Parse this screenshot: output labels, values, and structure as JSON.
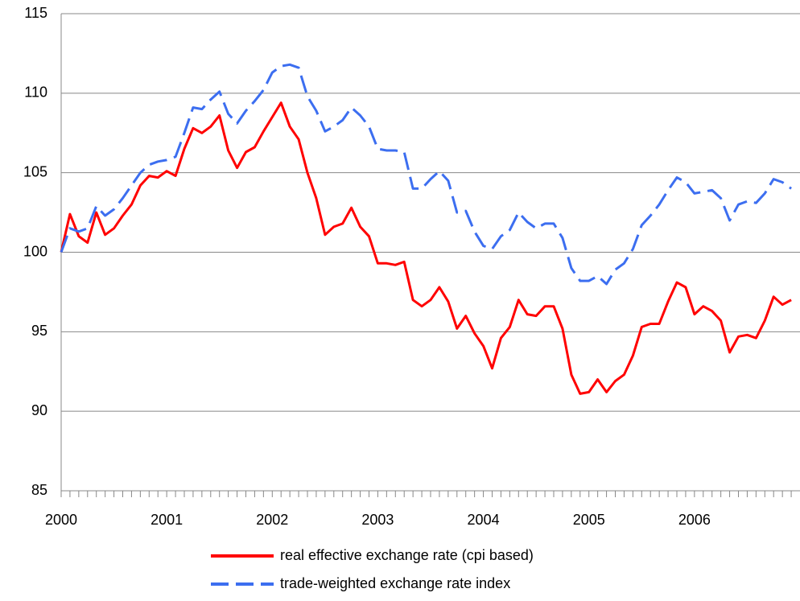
{
  "chart_data": {
    "type": "line",
    "categories": [
      "2000",
      null,
      null,
      null,
      null,
      null,
      null,
      null,
      null,
      null,
      null,
      null,
      "2001",
      null,
      null,
      null,
      null,
      null,
      null,
      null,
      null,
      null,
      null,
      null,
      "2002",
      null,
      null,
      null,
      null,
      null,
      null,
      null,
      null,
      null,
      null,
      null,
      "2003",
      null,
      null,
      null,
      null,
      null,
      null,
      null,
      null,
      null,
      null,
      null,
      "2004",
      null,
      null,
      null,
      null,
      null,
      null,
      null,
      null,
      null,
      null,
      null,
      "2005",
      null,
      null,
      null,
      null,
      null,
      null,
      null,
      null,
      null,
      null,
      null,
      "2006",
      null,
      null,
      null,
      null,
      null,
      null,
      null,
      null,
      null,
      null,
      null
    ],
    "series": [
      {
        "name": "real effective exchange rate (cpi based)",
        "color": "#ff0000",
        "dashed": false,
        "values": [
          100,
          102.4,
          101.0,
          100.6,
          102.5,
          101.1,
          101.5,
          102.3,
          103.0,
          104.2,
          104.8,
          104.7,
          105.1,
          104.8,
          106.5,
          107.8,
          107.5,
          107.9,
          108.6,
          106.4,
          105.3,
          106.3,
          106.6,
          107.6,
          108.5,
          109.4,
          107.9,
          107.1,
          105.0,
          103.4,
          101.1,
          101.6,
          101.8,
          102.8,
          101.6,
          101.0,
          99.3,
          99.3,
          99.2,
          99.4,
          97.0,
          96.6,
          97.0,
          97.8,
          96.9,
          95.2,
          96.0,
          94.9,
          94.1,
          92.7,
          94.6,
          95.3,
          97.0,
          96.1,
          96.0,
          96.6,
          96.6,
          95.2,
          92.3,
          91.1,
          91.2,
          92.0,
          91.2,
          91.9,
          92.3,
          93.5,
          95.3,
          95.5,
          95.5,
          96.9,
          98.1,
          97.8,
          96.1,
          96.6,
          96.3,
          95.7,
          93.7,
          94.7,
          94.8,
          94.6,
          95.7,
          97.2,
          96.7,
          97.0
        ]
      },
      {
        "name": "trade-weighted exchange rate index",
        "color": "#3c6ef0",
        "dashed": true,
        "values": [
          100,
          101.5,
          101.3,
          101.5,
          102.9,
          102.3,
          102.7,
          103.4,
          104.2,
          105.0,
          105.5,
          105.7,
          105.8,
          106.0,
          107.5,
          109.1,
          109.0,
          109.6,
          110.1,
          108.7,
          108.1,
          108.9,
          109.5,
          110.2,
          111.3,
          111.7,
          111.8,
          111.6,
          109.8,
          108.9,
          107.6,
          107.9,
          108.3,
          109.1,
          108.6,
          107.9,
          106.5,
          106.4,
          106.4,
          106.3,
          104.0,
          104.0,
          104.6,
          105.1,
          104.5,
          102.5,
          102.6,
          101.3,
          100.4,
          100.2,
          101.0,
          101.4,
          102.5,
          101.9,
          101.5,
          101.8,
          101.8,
          100.9,
          99.0,
          98.2,
          98.2,
          98.5,
          98.0,
          98.9,
          99.3,
          100.2,
          101.7,
          102.3,
          103.0,
          103.9,
          104.7,
          104.4,
          103.7,
          103.8,
          103.9,
          103.4,
          102.0,
          103.0,
          103.2,
          103.1,
          103.7,
          104.6,
          104.4,
          104.0
        ]
      }
    ],
    "ylim": [
      85,
      115
    ],
    "yticks": [
      85,
      90,
      95,
      100,
      105,
      110,
      115
    ],
    "grid": true,
    "legend": "bottom"
  }
}
